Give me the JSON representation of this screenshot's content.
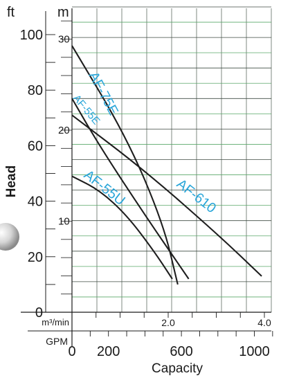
{
  "chart_data": {
    "type": "line",
    "title": "",
    "xlabel": "Capacity",
    "ylabel": "Head",
    "x_units": {
      "primary": "GPM",
      "secondary": "m³/min"
    },
    "y_units": {
      "primary": "ft",
      "secondary": "m"
    },
    "xlim": [
      0,
      1100
    ],
    "ylim": [
      0,
      100
    ],
    "x_ticks_gpm": [
      {
        "value": 0,
        "label": "0"
      },
      {
        "value": 200,
        "label": "200"
      },
      {
        "value": 600,
        "label": "600"
      },
      {
        "value": 1000,
        "label": "1000"
      }
    ],
    "x_ticks_m3min": [
      {
        "value": 2.0,
        "label": "2.0"
      },
      {
        "value": 4.0,
        "label": "4.0"
      }
    ],
    "y_ticks_ft": [
      {
        "value": 0,
        "label": "0"
      },
      {
        "value": 20,
        "label": "20"
      },
      {
        "value": 40,
        "label": "40"
      },
      {
        "value": 60,
        "label": "60"
      },
      {
        "value": 80,
        "label": "80"
      },
      {
        "value": 100,
        "label": "100"
      }
    ],
    "y_ticks_m": [
      {
        "value": 10,
        "label": "10"
      },
      {
        "value": 20,
        "label": "20"
      },
      {
        "value": 30,
        "label": "30"
      }
    ],
    "grid": true,
    "series": [
      {
        "name": "AF-75E",
        "color": "#2aa6d9",
        "x": [
          0,
          300,
          500,
          580
        ],
        "y": [
          96,
          63,
          32,
          10
        ]
      },
      {
        "name": "AF-55E",
        "color": "#2aa6d9",
        "x": [
          0,
          150,
          400,
          640
        ],
        "y": [
          77,
          60,
          35,
          12
        ]
      },
      {
        "name": "AF-610",
        "color": "#2aa6d9",
        "x": [
          0,
          400,
          800,
          1040
        ],
        "y": [
          71,
          51,
          28,
          13
        ]
      },
      {
        "name": "AF-55U",
        "color": "#2aa6d9",
        "x": [
          0,
          150,
          300,
          450,
          550
        ],
        "y": [
          49,
          44,
          35,
          22,
          12
        ]
      }
    ]
  }
}
